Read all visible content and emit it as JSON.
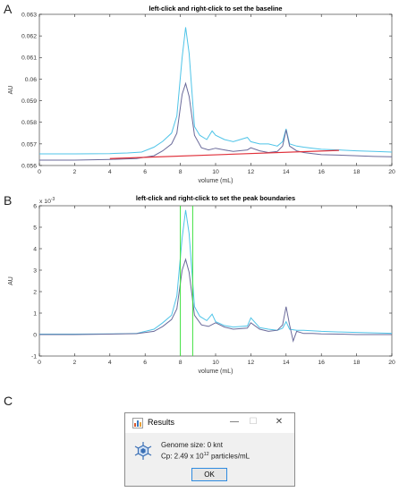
{
  "panels": {
    "a": "A",
    "b": "B",
    "c": "C"
  },
  "chart_data": [
    {
      "type": "line",
      "title": "left-click and right-click to set the baseline",
      "xlabel": "volume (mL)",
      "ylabel": "AU",
      "xlim": [
        0,
        20
      ],
      "ylim": [
        0.056,
        0.063
      ],
      "xticks": [
        "0",
        "2",
        "4",
        "6",
        "8",
        "10",
        "12",
        "14",
        "16",
        "18",
        "20"
      ],
      "yticks": [
        "0.056",
        "0.057",
        "0.058",
        "0.059",
        "0.06",
        "0.061",
        "0.062",
        "0.063"
      ],
      "series": [
        {
          "color": "#4fc4e8",
          "x": [
            0,
            2,
            4,
            5,
            5.8,
            6.5,
            7,
            7.5,
            7.8,
            8.1,
            8.3,
            8.5,
            8.8,
            9.1,
            9.5,
            9.8,
            10,
            10.5,
            11,
            11.8,
            12,
            12.5,
            13,
            13.5,
            13.8,
            14,
            14.2,
            14.6,
            15,
            15.5,
            16,
            17,
            18,
            19,
            20
          ],
          "y": [
            0.05654,
            0.05654,
            0.05655,
            0.05658,
            0.05662,
            0.05685,
            0.05712,
            0.0575,
            0.0583,
            0.061,
            0.0624,
            0.0612,
            0.0578,
            0.0574,
            0.0572,
            0.0576,
            0.0574,
            0.0572,
            0.0571,
            0.0573,
            0.0571,
            0.057,
            0.057,
            0.0569,
            0.0571,
            0.0577,
            0.057,
            0.0569,
            0.05685,
            0.0568,
            0.05675,
            0.05672,
            0.05668,
            0.05665,
            0.05662
          ]
        },
        {
          "color": "#6a6a9a",
          "x": [
            0,
            2,
            4,
            5.5,
            6.5,
            7,
            7.5,
            7.8,
            8.1,
            8.3,
            8.5,
            8.8,
            9.2,
            9.6,
            10,
            10.5,
            11,
            11.8,
            12,
            12.5,
            13,
            13.5,
            13.8,
            14,
            14.2,
            14.6,
            15,
            15.5,
            16,
            17,
            18,
            19,
            20
          ],
          "y": [
            0.05625,
            0.05625,
            0.05628,
            0.05632,
            0.05645,
            0.05668,
            0.057,
            0.0575,
            0.0593,
            0.0598,
            0.0592,
            0.0574,
            0.05682,
            0.05672,
            0.0568,
            0.05672,
            0.05665,
            0.05672,
            0.05682,
            0.05668,
            0.0566,
            0.05665,
            0.0569,
            0.05765,
            0.0569,
            0.05668,
            0.0566,
            0.05655,
            0.0565,
            0.05648,
            0.05645,
            0.05642,
            0.0564
          ]
        }
      ],
      "baseline": {
        "color": "#e0303a",
        "x": [
          4,
          17
        ],
        "y": [
          0.05632,
          0.0567
        ]
      }
    },
    {
      "type": "line",
      "title": "left-click and right-click to set the peak boundaries",
      "xlabel": "volume (mL)",
      "ylabel": "AU",
      "exponent_label": "x 10",
      "exponent_power": "-3",
      "xlim": [
        0,
        20
      ],
      "ylim": [
        -1,
        6
      ],
      "xticks": [
        "0",
        "2",
        "4",
        "6",
        "8",
        "10",
        "12",
        "14",
        "16",
        "18",
        "20"
      ],
      "yticks": [
        "-1",
        "0",
        "1",
        "2",
        "3",
        "4",
        "5",
        "6"
      ],
      "series": [
        {
          "color": "#4fc4e8",
          "x": [
            0,
            2,
            4,
            5.5,
            6.5,
            7,
            7.5,
            7.8,
            8.1,
            8.3,
            8.5,
            8.8,
            9.1,
            9.5,
            9.8,
            10,
            10.5,
            11,
            11.8,
            12,
            12.5,
            13,
            13.5,
            13.8,
            14,
            14.2,
            14.6,
            15,
            16,
            17,
            18,
            19,
            20
          ],
          "y": [
            0.02,
            0.02,
            0.03,
            0.05,
            0.25,
            0.55,
            0.9,
            1.8,
            4.5,
            5.8,
            4.7,
            1.3,
            0.85,
            0.65,
            0.95,
            0.6,
            0.42,
            0.35,
            0.4,
            0.78,
            0.32,
            0.25,
            0.2,
            0.3,
            0.6,
            0.25,
            0.2,
            0.2,
            0.15,
            0.12,
            0.1,
            0.08,
            0.06
          ]
        },
        {
          "color": "#6a6a9a",
          "x": [
            0,
            2,
            4,
            5.5,
            6.5,
            7,
            7.5,
            7.8,
            8.1,
            8.3,
            8.5,
            8.8,
            9.2,
            9.6,
            10,
            10.5,
            11,
            11.8,
            12,
            12.5,
            13,
            13.5,
            13.8,
            14,
            14.2,
            14.4,
            14.6,
            15,
            15.5,
            16,
            17,
            18,
            19,
            20
          ],
          "y": [
            0.0,
            0.0,
            0.02,
            0.04,
            0.15,
            0.38,
            0.7,
            1.2,
            3.0,
            3.5,
            2.9,
            0.9,
            0.45,
            0.38,
            0.55,
            0.35,
            0.25,
            0.3,
            0.55,
            0.25,
            0.15,
            0.2,
            0.45,
            1.3,
            0.45,
            -0.3,
            0.15,
            0.05,
            0.05,
            0.03,
            0.02,
            0.0,
            0.0,
            0.0
          ]
        }
      ],
      "boundaries": {
        "color": "#3ee03e",
        "x": [
          8.0,
          8.7
        ]
      }
    }
  ],
  "dialog": {
    "title": "Results",
    "minimize": "—",
    "maximize": "☐",
    "close": "✕",
    "genome_line": "Genome size: 0 knt",
    "cp_prefix": "Cp: 2.49 x 10",
    "cp_exp": "12",
    "cp_suffix": " particles/mL",
    "ok_label": "OK"
  }
}
